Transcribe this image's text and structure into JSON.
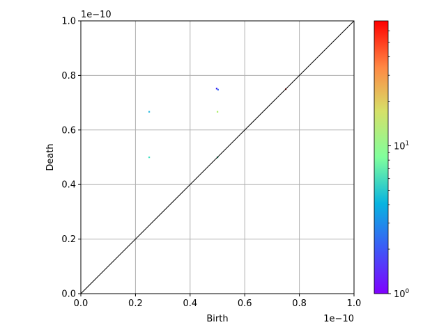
{
  "chart_data": {
    "type": "heatmap",
    "xlabel": "Birth",
    "ylabel": "Death",
    "x_offset_label": "1e−10",
    "y_offset_label": "1e−10",
    "xlim": [
      0,
      1.0
    ],
    "ylim": [
      0,
      1.0
    ],
    "x_ticks": [
      0.0,
      0.2,
      0.4,
      0.6,
      0.8,
      1.0
    ],
    "x_tick_labels": [
      "0.0",
      "0.2",
      "0.4",
      "0.6",
      "0.8",
      "1.0"
    ],
    "y_ticks": [
      0.0,
      0.2,
      0.4,
      0.6,
      0.8,
      1.0
    ],
    "y_tick_labels": [
      "0.0",
      "0.2",
      "0.4",
      "0.6",
      "0.8",
      "1.0"
    ],
    "grid": true,
    "diagonal_line": true,
    "colormap": "rainbow",
    "colorbar": {
      "scale": "log",
      "range": [
        1,
        70
      ],
      "major_ticks": [
        1,
        10
      ],
      "major_tick_labels": [
        "10",
        "10"
      ],
      "major_tick_exponents": [
        "0",
        "1"
      ],
      "minor_ticks": [
        2,
        3,
        4,
        5,
        6,
        7,
        8,
        9,
        20,
        30,
        40,
        50,
        60
      ]
    },
    "points": [
      {
        "x": 0.497,
        "y": 0.752,
        "count": 1,
        "color": "#2a10f0"
      },
      {
        "x": 0.502,
        "y": 0.748,
        "count": 2,
        "color": "#3c6cf5"
      },
      {
        "x": 0.25,
        "y": 0.667,
        "count": 4,
        "color": "#24b8e0"
      },
      {
        "x": 0.5,
        "y": 0.667,
        "count": 14,
        "color": "#a8ee60"
      },
      {
        "x": 0.25,
        "y": 0.5,
        "count": 6,
        "color": "#3ce0c0"
      },
      {
        "x": 0.5,
        "y": 0.5,
        "count": 5,
        "color": "#10a070"
      },
      {
        "x": 0.75,
        "y": 0.75,
        "count": 70,
        "color": "#b02020"
      }
    ]
  }
}
